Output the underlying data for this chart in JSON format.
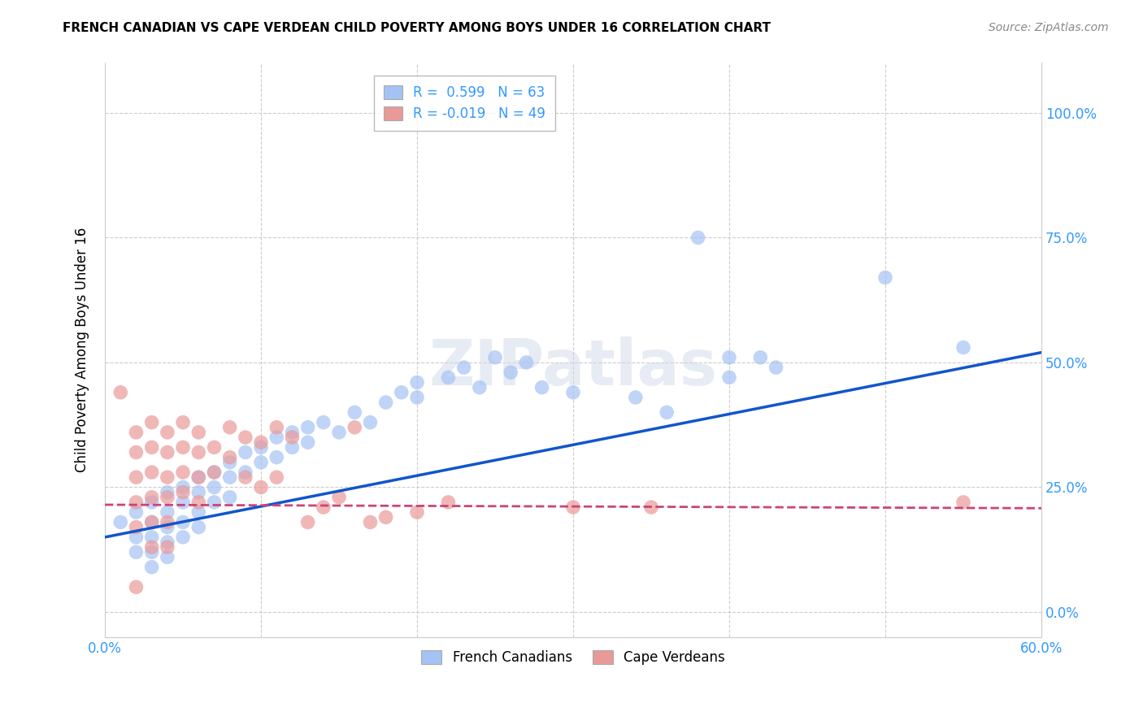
{
  "title": "FRENCH CANADIAN VS CAPE VERDEAN CHILD POVERTY AMONG BOYS UNDER 16 CORRELATION CHART",
  "source": "Source: ZipAtlas.com",
  "ylabel": "Child Poverty Among Boys Under 16",
  "xlim": [
    0.0,
    0.6
  ],
  "ylim": [
    -0.05,
    1.1
  ],
  "xticks": [
    0.0,
    0.1,
    0.2,
    0.3,
    0.4,
    0.5,
    0.6
  ],
  "xtick_labels": [
    "0.0%",
    "",
    "",
    "",
    "",
    "",
    "60.0%"
  ],
  "yticks": [
    0.0,
    0.25,
    0.5,
    0.75,
    1.0
  ],
  "ytick_labels_right": [
    "0.0%",
    "25.0%",
    "50.0%",
    "75.0%",
    "100.0%"
  ],
  "blue_R": 0.599,
  "blue_N": 63,
  "pink_R": -0.019,
  "pink_N": 49,
  "blue_color": "#a4c2f4",
  "pink_color": "#ea9999",
  "blue_line_color": "#1155cc",
  "pink_line_color": "#cc4477",
  "watermark": "ZIPatlas",
  "legend_label_blue": "French Canadians",
  "legend_label_pink": "Cape Verdeans",
  "blue_points": [
    [
      0.01,
      0.18
    ],
    [
      0.02,
      0.2
    ],
    [
      0.02,
      0.15
    ],
    [
      0.02,
      0.12
    ],
    [
      0.03,
      0.22
    ],
    [
      0.03,
      0.18
    ],
    [
      0.03,
      0.15
    ],
    [
      0.03,
      0.12
    ],
    [
      0.03,
      0.09
    ],
    [
      0.04,
      0.24
    ],
    [
      0.04,
      0.2
    ],
    [
      0.04,
      0.17
    ],
    [
      0.04,
      0.14
    ],
    [
      0.04,
      0.11
    ],
    [
      0.05,
      0.25
    ],
    [
      0.05,
      0.22
    ],
    [
      0.05,
      0.18
    ],
    [
      0.05,
      0.15
    ],
    [
      0.06,
      0.27
    ],
    [
      0.06,
      0.24
    ],
    [
      0.06,
      0.2
    ],
    [
      0.06,
      0.17
    ],
    [
      0.07,
      0.28
    ],
    [
      0.07,
      0.25
    ],
    [
      0.07,
      0.22
    ],
    [
      0.08,
      0.3
    ],
    [
      0.08,
      0.27
    ],
    [
      0.08,
      0.23
    ],
    [
      0.09,
      0.32
    ],
    [
      0.09,
      0.28
    ],
    [
      0.1,
      0.33
    ],
    [
      0.1,
      0.3
    ],
    [
      0.11,
      0.35
    ],
    [
      0.11,
      0.31
    ],
    [
      0.12,
      0.36
    ],
    [
      0.12,
      0.33
    ],
    [
      0.13,
      0.37
    ],
    [
      0.13,
      0.34
    ],
    [
      0.14,
      0.38
    ],
    [
      0.15,
      0.36
    ],
    [
      0.16,
      0.4
    ],
    [
      0.17,
      0.38
    ],
    [
      0.18,
      0.42
    ],
    [
      0.19,
      0.44
    ],
    [
      0.2,
      0.46
    ],
    [
      0.2,
      0.43
    ],
    [
      0.22,
      0.47
    ],
    [
      0.23,
      0.49
    ],
    [
      0.24,
      0.45
    ],
    [
      0.25,
      0.51
    ],
    [
      0.26,
      0.48
    ],
    [
      0.27,
      0.5
    ],
    [
      0.28,
      0.45
    ],
    [
      0.3,
      0.44
    ],
    [
      0.34,
      0.43
    ],
    [
      0.36,
      0.4
    ],
    [
      0.38,
      0.75
    ],
    [
      0.4,
      0.51
    ],
    [
      0.4,
      0.47
    ],
    [
      0.42,
      0.51
    ],
    [
      0.43,
      0.49
    ],
    [
      0.5,
      0.67
    ],
    [
      0.55,
      0.53
    ]
  ],
  "pink_points": [
    [
      0.01,
      0.44
    ],
    [
      0.02,
      0.36
    ],
    [
      0.02,
      0.32
    ],
    [
      0.02,
      0.27
    ],
    [
      0.02,
      0.22
    ],
    [
      0.02,
      0.17
    ],
    [
      0.02,
      0.05
    ],
    [
      0.03,
      0.38
    ],
    [
      0.03,
      0.33
    ],
    [
      0.03,
      0.28
    ],
    [
      0.03,
      0.23
    ],
    [
      0.03,
      0.18
    ],
    [
      0.03,
      0.13
    ],
    [
      0.04,
      0.36
    ],
    [
      0.04,
      0.32
    ],
    [
      0.04,
      0.27
    ],
    [
      0.04,
      0.23
    ],
    [
      0.04,
      0.18
    ],
    [
      0.04,
      0.13
    ],
    [
      0.05,
      0.38
    ],
    [
      0.05,
      0.33
    ],
    [
      0.05,
      0.28
    ],
    [
      0.05,
      0.24
    ],
    [
      0.06,
      0.36
    ],
    [
      0.06,
      0.32
    ],
    [
      0.06,
      0.27
    ],
    [
      0.06,
      0.22
    ],
    [
      0.07,
      0.33
    ],
    [
      0.07,
      0.28
    ],
    [
      0.08,
      0.37
    ],
    [
      0.08,
      0.31
    ],
    [
      0.09,
      0.35
    ],
    [
      0.09,
      0.27
    ],
    [
      0.1,
      0.34
    ],
    [
      0.1,
      0.25
    ],
    [
      0.11,
      0.37
    ],
    [
      0.11,
      0.27
    ],
    [
      0.12,
      0.35
    ],
    [
      0.13,
      0.18
    ],
    [
      0.14,
      0.21
    ],
    [
      0.15,
      0.23
    ],
    [
      0.16,
      0.37
    ],
    [
      0.17,
      0.18
    ],
    [
      0.18,
      0.19
    ],
    [
      0.2,
      0.2
    ],
    [
      0.22,
      0.22
    ],
    [
      0.3,
      0.21
    ],
    [
      0.35,
      0.21
    ],
    [
      0.55,
      0.22
    ]
  ],
  "blue_line_x": [
    0.0,
    0.6
  ],
  "blue_line_y": [
    0.15,
    0.52
  ],
  "pink_line_x": [
    0.0,
    0.6
  ],
  "pink_line_y": [
    0.215,
    0.208
  ]
}
